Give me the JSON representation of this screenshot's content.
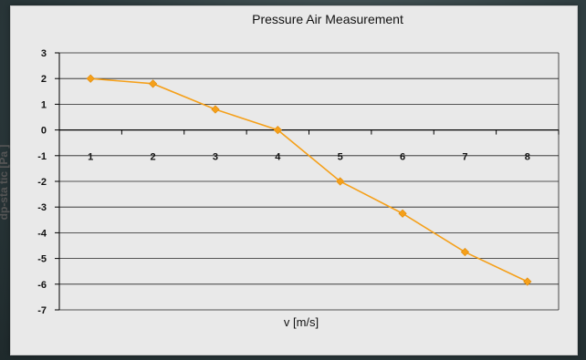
{
  "chart_data": {
    "type": "line",
    "title": "Pressure Air Measurement",
    "xlabel": "v [m/s]",
    "ylabel": "dp-sta tic  [Pa ]",
    "x": [
      1,
      2,
      3,
      4,
      5,
      6,
      7,
      8
    ],
    "series": [
      {
        "values": [
          2.0,
          1.8,
          0.8,
          0.0,
          -2.0,
          -3.25,
          -4.75,
          -5.9
        ]
      }
    ],
    "xlim": [
      0.5,
      8.5
    ],
    "ylim": [
      -7,
      3
    ],
    "yticks": [
      3,
      2,
      1,
      0,
      -1,
      -2,
      -3,
      -4,
      -5,
      -6,
      -7
    ],
    "xticks": [
      "1",
      "2",
      "3",
      "4",
      "5",
      "6",
      "7",
      "8"
    ],
    "grid": true,
    "legend": "none",
    "colors": {
      "line": "#f5a01a",
      "marker": "#f5a01a",
      "grid": "#222222",
      "axis": "#000000"
    }
  }
}
